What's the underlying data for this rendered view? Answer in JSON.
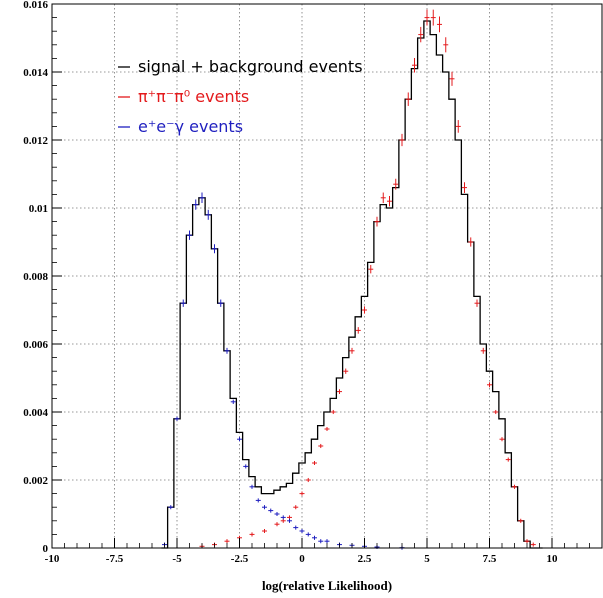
{
  "chart_data": {
    "type": "line",
    "title": "",
    "xlabel": "log(relative Likelihood)",
    "ylabel": "",
    "xlim": [
      -10,
      12
    ],
    "ylim": [
      0,
      0.016
    ],
    "xticks": [
      -10,
      -7.5,
      -5,
      -2.5,
      0,
      2.5,
      5,
      7.5,
      10
    ],
    "xtick_labels": [
      "-10",
      "-7.5",
      "-5",
      "-2.5",
      "0",
      "2.5",
      "5",
      "7.5",
      "10"
    ],
    "yticks": [
      0,
      0.002,
      0.004,
      0.006,
      0.008,
      0.01,
      0.012,
      0.014,
      0.016
    ],
    "ytick_labels": [
      "0",
      "0.002",
      "0.004",
      "0.006",
      "0.008",
      "0.01",
      "0.012",
      "0.014",
      "0.016"
    ],
    "grid": true,
    "legend_position": "top-left",
    "series": [
      {
        "name": "signal + background events",
        "style": "histogram",
        "color": "#000000",
        "x": [
          -5.5,
          -5.25,
          -5.0,
          -4.75,
          -4.5,
          -4.25,
          -4.0,
          -3.75,
          -3.5,
          -3.25,
          -3.0,
          -2.75,
          -2.5,
          -2.25,
          -2.0,
          -1.75,
          -1.5,
          -1.25,
          -1.0,
          -0.75,
          -0.5,
          -0.25,
          0.0,
          0.25,
          0.5,
          0.75,
          1.0,
          1.25,
          1.5,
          1.75,
          2.0,
          2.25,
          2.5,
          2.75,
          3.0,
          3.25,
          3.5,
          3.75,
          4.0,
          4.25,
          4.5,
          4.75,
          5.0,
          5.25,
          5.5,
          5.75,
          6.0,
          6.25,
          6.5,
          6.75,
          7.0,
          7.25,
          7.5,
          7.75,
          8.0,
          8.25,
          8.5,
          8.75,
          9.0,
          9.25,
          9.5
        ],
        "y": [
          0.0,
          0.0012,
          0.0038,
          0.0072,
          0.0092,
          0.0101,
          0.0103,
          0.0098,
          0.0088,
          0.0072,
          0.0058,
          0.0044,
          0.0034,
          0.0026,
          0.0021,
          0.0018,
          0.0016,
          0.0016,
          0.0017,
          0.0018,
          0.0019,
          0.0022,
          0.0025,
          0.0028,
          0.0032,
          0.0036,
          0.004,
          0.0044,
          0.005,
          0.0056,
          0.0062,
          0.0068,
          0.0074,
          0.0084,
          0.0096,
          0.0101,
          0.01,
          0.0106,
          0.012,
          0.0132,
          0.0141,
          0.015,
          0.0155,
          0.0151,
          0.0145,
          0.014,
          0.0132,
          0.012,
          0.0104,
          0.009,
          0.0074,
          0.006,
          0.0052,
          0.0046,
          0.0038,
          0.0028,
          0.0018,
          0.0008,
          0.0002,
          0.0,
          0.0
        ]
      },
      {
        "name": "π⁺π⁻π⁰ events",
        "style": "errorbar",
        "color": "#e31a1c",
        "x": [
          -4.0,
          -3.5,
          -3.0,
          -2.5,
          -2.0,
          -1.5,
          -1.0,
          -0.75,
          -0.5,
          -0.25,
          0.0,
          0.25,
          0.5,
          0.75,
          1.0,
          1.25,
          1.5,
          1.75,
          2.0,
          2.25,
          2.5,
          2.75,
          3.0,
          3.25,
          3.5,
          3.75,
          4.0,
          4.25,
          4.5,
          4.75,
          5.0,
          5.25,
          5.5,
          5.75,
          6.0,
          6.25,
          6.5,
          6.75,
          7.0,
          7.25,
          7.5,
          7.75,
          8.0,
          8.25,
          8.5,
          8.75,
          9.0,
          9.25
        ],
        "y": [
          5e-05,
          0.0001,
          0.0002,
          0.0003,
          0.0004,
          0.0005,
          0.0007,
          0.0008,
          0.0009,
          0.0012,
          0.0016,
          0.002,
          0.0025,
          0.003,
          0.0035,
          0.004,
          0.0046,
          0.0052,
          0.0058,
          0.0064,
          0.007,
          0.0082,
          0.0096,
          0.0103,
          0.0102,
          0.0107,
          0.012,
          0.0132,
          0.0142,
          0.0151,
          0.0156,
          0.0156,
          0.0154,
          0.0148,
          0.0138,
          0.0124,
          0.0106,
          0.009,
          0.0072,
          0.0058,
          0.0048,
          0.004,
          0.0032,
          0.0026,
          0.0018,
          0.0008,
          0.0002,
          0.0001
        ]
      },
      {
        "name": "e⁺e⁻γ events",
        "style": "errorbar",
        "color": "#1f1fbf",
        "x": [
          -5.5,
          -5.25,
          -5.0,
          -4.75,
          -4.5,
          -4.25,
          -4.0,
          -3.75,
          -3.5,
          -3.25,
          -3.0,
          -2.75,
          -2.5,
          -2.25,
          -2.0,
          -1.75,
          -1.5,
          -1.25,
          -1.0,
          -0.75,
          -0.5,
          -0.25,
          0.0,
          0.25,
          0.5,
          0.75,
          1.0,
          1.5,
          2.0,
          2.5,
          3.0,
          4.0
        ],
        "y": [
          0.0001,
          0.0012,
          0.0038,
          0.0072,
          0.0092,
          0.0101,
          0.0103,
          0.0098,
          0.0088,
          0.0072,
          0.0058,
          0.0043,
          0.0032,
          0.0024,
          0.0018,
          0.0014,
          0.0012,
          0.0011,
          0.001,
          0.0009,
          0.0008,
          0.0006,
          0.0005,
          0.0004,
          0.0003,
          0.0002,
          0.0002,
          0.0001,
          8e-05,
          5e-05,
          3e-05,
          1e-05
        ]
      }
    ]
  }
}
